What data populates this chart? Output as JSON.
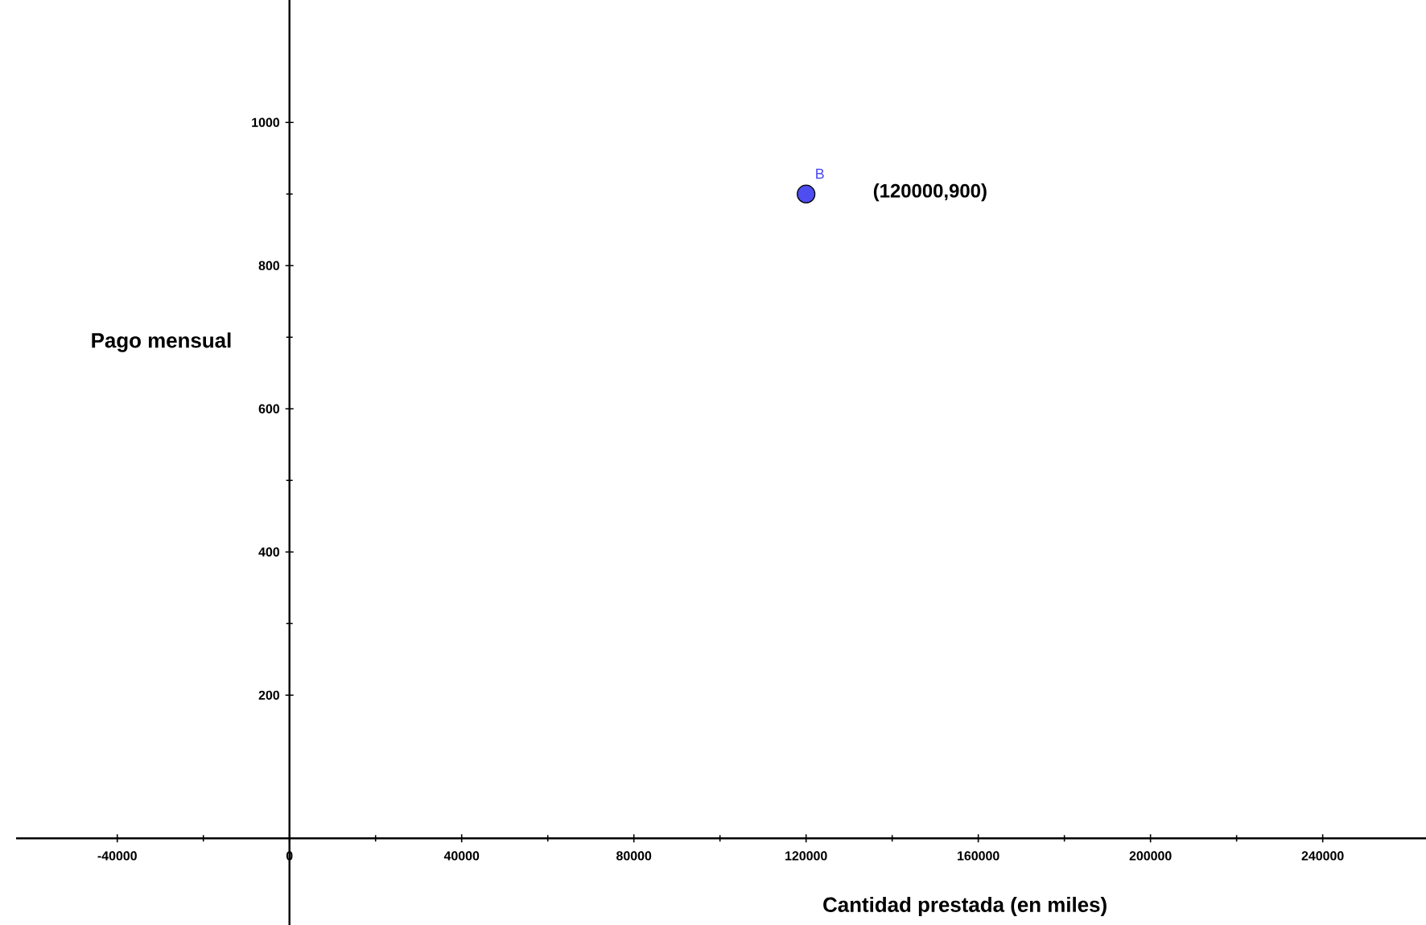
{
  "chart_data": {
    "type": "scatter",
    "xlabel": "Cantidad prestada (en miles)",
    "ylabel": "Pago mensual",
    "xlim": [
      -63500,
      264000
    ],
    "ylim": [
      -121,
      1171
    ],
    "xticks": [
      -40000,
      0,
      40000,
      80000,
      120000,
      160000,
      200000,
      240000
    ],
    "yticks": [
      200,
      400,
      600,
      800,
      1000
    ],
    "marker": "circle",
    "series": [
      {
        "name": "B",
        "color": "#4d4df0",
        "x": [
          120000
        ],
        "values": [
          900
        ]
      }
    ],
    "annotations": [
      "(120000,900)"
    ]
  }
}
